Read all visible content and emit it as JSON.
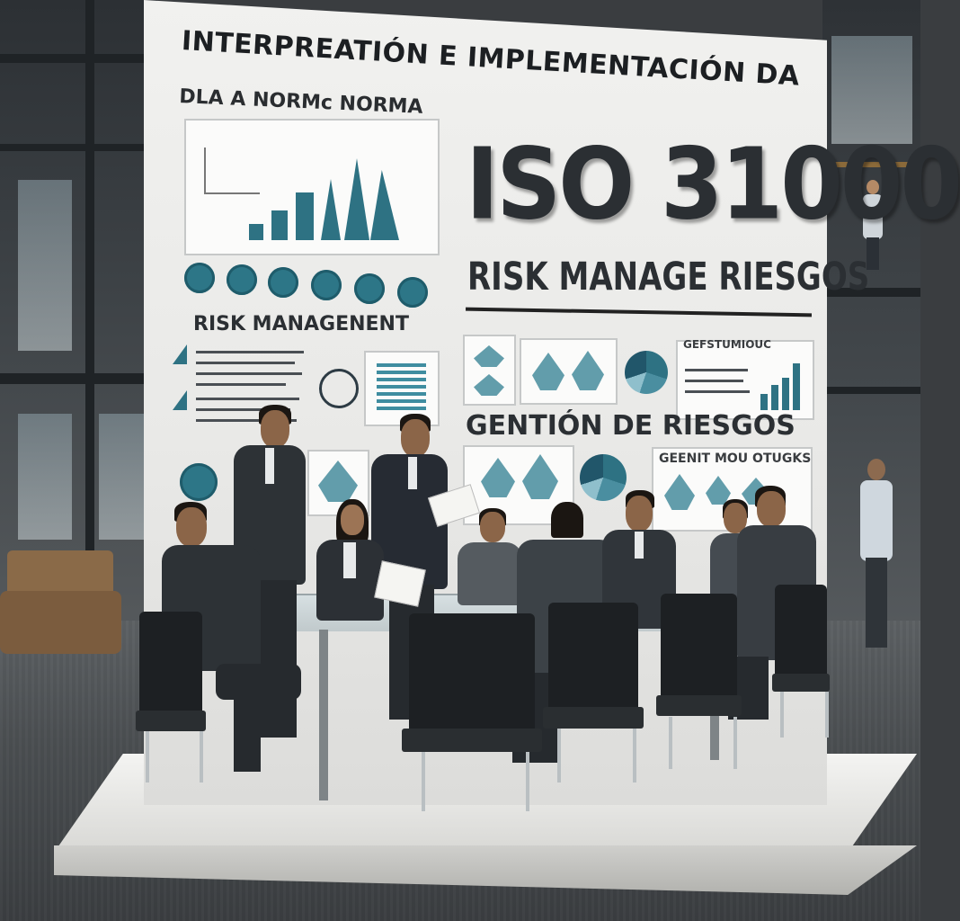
{
  "wall": {
    "title_main": "INTERPREATIÓN E IMPLEMENTACIÓN DA",
    "subtitle": "DLA A NORMᴄ NORMA",
    "iso_number": "ISO 31000",
    "risk_big": "RISK MANAGE RIESGOS",
    "risk_small": "RISK MANAGENENT",
    "gestion": "GENTIÓN DE RIESGOS",
    "gestion_sub": "GEENIT MOU OTUGKS",
    "gestion_top": "GEFSTUMIOUC"
  },
  "colors": {
    "accent_teal": "#2e7283",
    "wall": "#efefed",
    "text_dark": "#2b2f33",
    "floor": "#4b4f52"
  },
  "icons": [
    "bar-chart-icon",
    "pie-chart-icon",
    "clock-icon",
    "document-icon",
    "compass-icon",
    "puzzle-icon"
  ]
}
